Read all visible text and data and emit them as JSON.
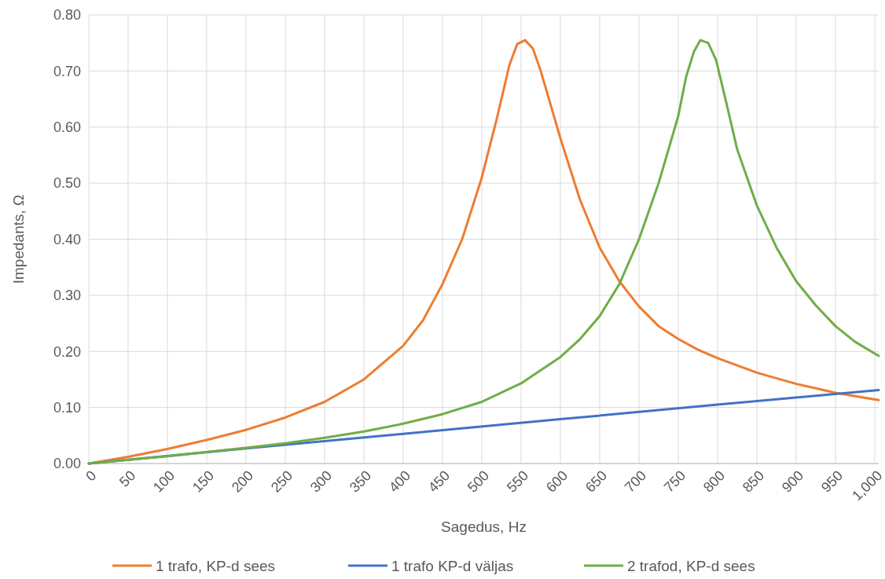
{
  "chart_data": {
    "type": "line",
    "xlabel": "Sagedus, Hz",
    "ylabel": "Impedants, Ω",
    "xlim": [
      0,
      1005
    ],
    "ylim": [
      0,
      0.8
    ],
    "xticks": [
      0,
      50,
      100,
      150,
      200,
      250,
      300,
      350,
      400,
      450,
      500,
      550,
      600,
      650,
      700,
      750,
      800,
      850,
      900,
      950,
      {
        "value": 1000,
        "label": "1,000"
      }
    ],
    "yticks": [
      {
        "value": 0,
        "label": "0.00"
      },
      {
        "value": 0.1,
        "label": "0.10"
      },
      {
        "value": 0.2,
        "label": "0.20"
      },
      {
        "value": 0.3,
        "label": "0.30"
      },
      {
        "value": 0.4,
        "label": "0.40"
      },
      {
        "value": 0.5,
        "label": "0.50"
      },
      {
        "value": 0.6,
        "label": "0.60"
      },
      {
        "value": 0.7,
        "label": "0.70"
      },
      {
        "value": 0.8,
        "label": "0.80"
      }
    ],
    "grid": true,
    "legend": "bottom",
    "marker": "none",
    "line_style": "solid",
    "series": [
      {
        "name": "1 trafo, KP-d sees",
        "color": "#ed7d31",
        "x": [
          0,
          50,
          100,
          150,
          200,
          250,
          300,
          350,
          400,
          425,
          450,
          475,
          500,
          520,
          535,
          545,
          555,
          565,
          575,
          600,
          625,
          650,
          675,
          700,
          725,
          750,
          775,
          800,
          850,
          900,
          950,
          1005
        ],
        "values": [
          0,
          0.012,
          0.026,
          0.042,
          0.06,
          0.082,
          0.11,
          0.15,
          0.21,
          0.255,
          0.32,
          0.4,
          0.51,
          0.62,
          0.71,
          0.748,
          0.755,
          0.74,
          0.7,
          0.58,
          0.47,
          0.385,
          0.325,
          0.28,
          0.245,
          0.222,
          0.203,
          0.188,
          0.162,
          0.142,
          0.126,
          0.113
        ]
      },
      {
        "name": "1 trafo KP-d väljas",
        "color": "#4472c4",
        "x": [
          0,
          200,
          400,
          600,
          800,
          1005
        ],
        "values": [
          0,
          0.027,
          0.053,
          0.079,
          0.105,
          0.131
        ]
      },
      {
        "name": "2 trafod, KP-d sees",
        "color": "#70ad47",
        "x": [
          0,
          100,
          200,
          250,
          300,
          350,
          400,
          450,
          500,
          550,
          600,
          625,
          650,
          675,
          700,
          725,
          750,
          760,
          770,
          778,
          788,
          798,
          810,
          825,
          850,
          875,
          900,
          925,
          950,
          975,
          1005
        ],
        "values": [
          0,
          0.013,
          0.028,
          0.036,
          0.046,
          0.057,
          0.071,
          0.088,
          0.11,
          0.143,
          0.19,
          0.222,
          0.263,
          0.32,
          0.4,
          0.5,
          0.62,
          0.69,
          0.735,
          0.755,
          0.75,
          0.72,
          0.65,
          0.56,
          0.46,
          0.385,
          0.325,
          0.282,
          0.245,
          0.217,
          0.192
        ]
      }
    ]
  }
}
